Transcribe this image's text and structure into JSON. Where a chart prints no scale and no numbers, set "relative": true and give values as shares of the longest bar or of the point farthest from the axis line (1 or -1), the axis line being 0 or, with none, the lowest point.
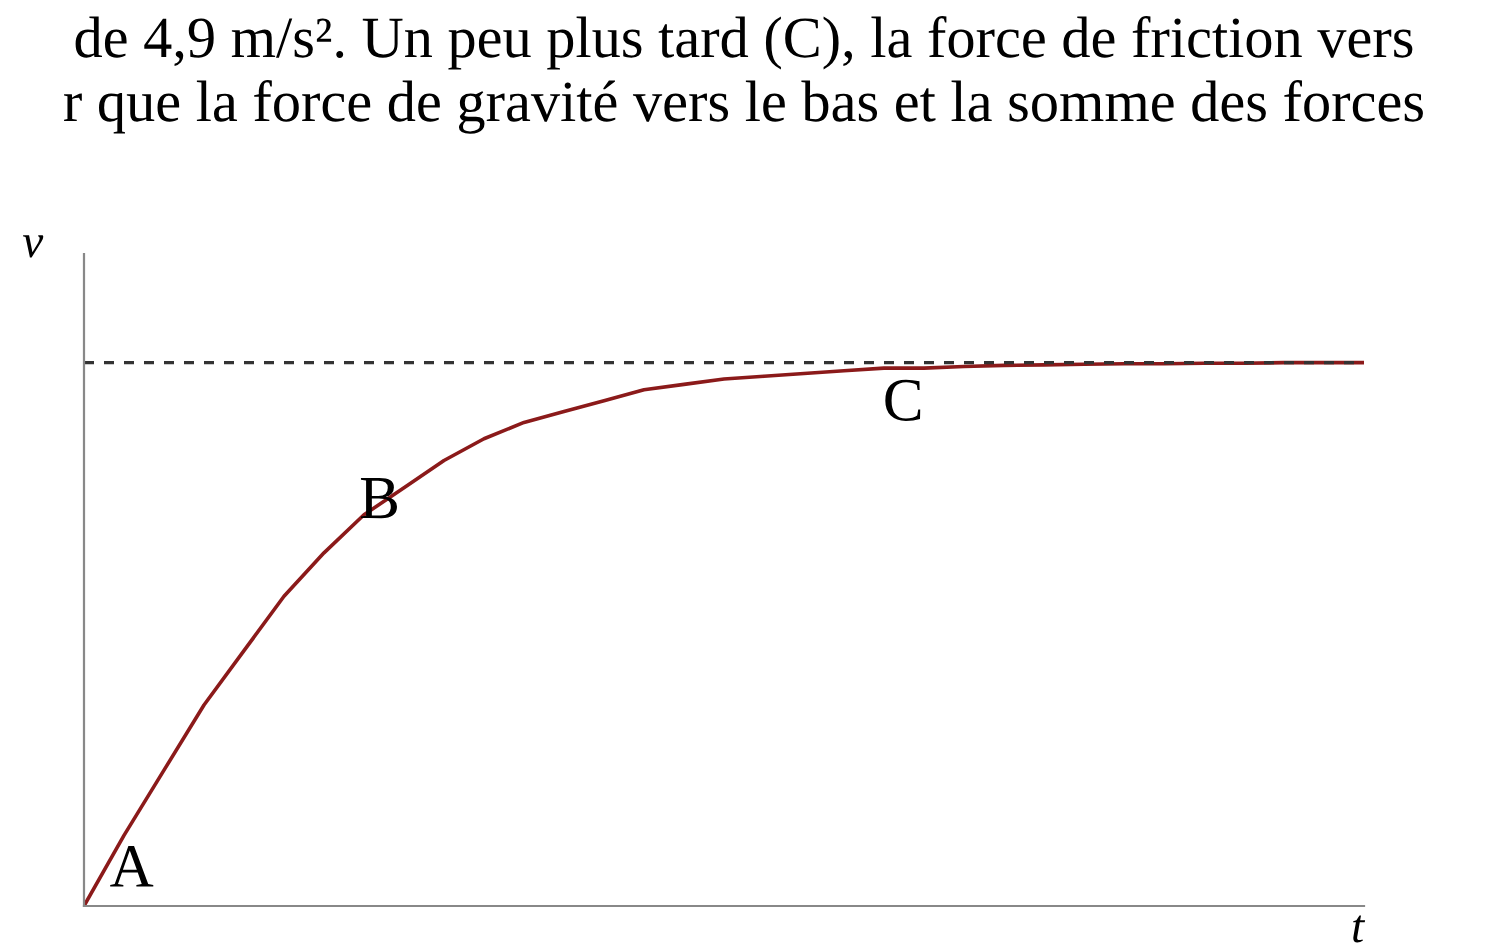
{
  "chart_data": {
    "type": "line",
    "relative": true,
    "xlabel": "t",
    "ylabel": "v",
    "categories": [
      null,
      null,
      null,
      null,
      null,
      null,
      null,
      null,
      null,
      null,
      null,
      null,
      null,
      null,
      null,
      null,
      null,
      null,
      null,
      null,
      null,
      null,
      null,
      null,
      null,
      null,
      null,
      null,
      null,
      null,
      null,
      null,
      null
    ],
    "series": [
      {
        "color": "#8b1a1a",
        "values": [
          0,
          0.13,
          0.25,
          0.37,
          0.47,
          0.57,
          0.65,
          0.72,
          0.77,
          0.82,
          0.86,
          0.89,
          0.91,
          0.93,
          0.95,
          0.96,
          0.97,
          0.975,
          0.98,
          0.985,
          0.99,
          0.99,
          0.993,
          0.995,
          0.996,
          0.997,
          0.998,
          0.998,
          0.999,
          0.999,
          1,
          1,
          1
        ]
      }
    ],
    "ref_lines": [
      {
        "axis": "y",
        "value": 1,
        "color": "#333333",
        "line_style": "dashed"
      }
    ],
    "annotations": [
      "de 4,9 m/s². Un peu plus tard (C), la force de friction vers",
      "r que la force de gravité vers le bas et la somme des forces",
      "A",
      "B",
      "C"
    ],
    "legend": false,
    "marker": "none",
    "line_style": "solid"
  }
}
